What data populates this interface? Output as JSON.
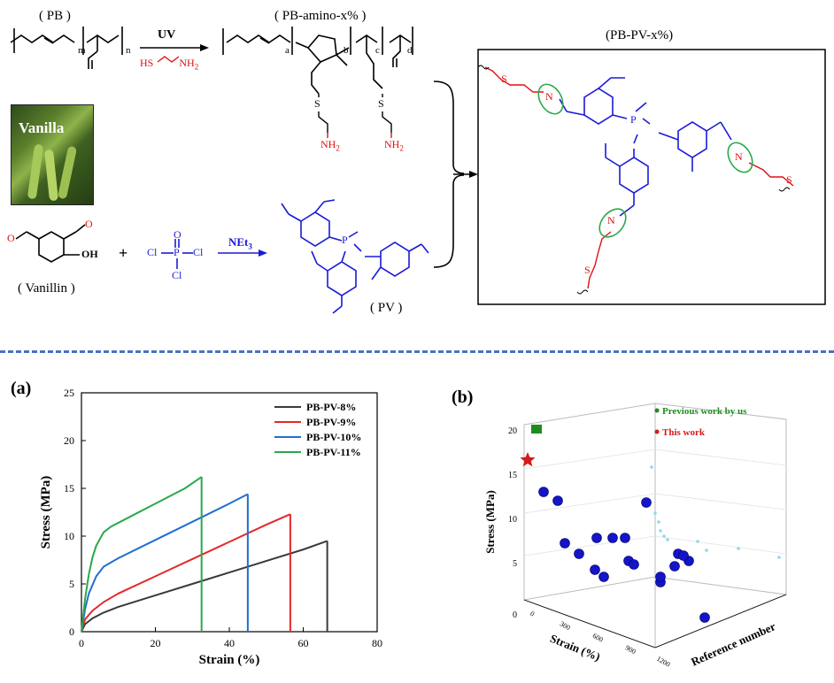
{
  "scheme": {
    "pb_label": "( PB )",
    "pb_amino_label": "( PB-amino-x% )",
    "pb_pv_label": "(PB-PV-x%)",
    "uv_label": "UV",
    "thiol_reagent": "HS",
    "thiol_amine": "NH",
    "thiol_sub": "2",
    "vanilla_text": "Vanilla",
    "vanillin_label": "( Vanillin )",
    "plus": "+",
    "net3_label": "NEt",
    "net3_sub": "3",
    "pv_label": "( PV )",
    "subscripts": {
      "m": "m",
      "n": "n",
      "a": "a",
      "b": "b",
      "c": "c",
      "d": "d"
    },
    "atoms": {
      "OH": "OH",
      "O": "O",
      "P": "P",
      "Cl": "Cl",
      "N": "N",
      "S": "S",
      "NH2": "NH",
      "H2": "2"
    },
    "colors": {
      "blue": "#1a1ad9",
      "red": "#e01010",
      "green": "#2aa84a",
      "black": "#000000"
    }
  },
  "panel_a": {
    "label": "(a)",
    "chart_data": {
      "type": "line",
      "xlabel": "Strain (%)",
      "ylabel": "Stress (MPa)",
      "xlim": [
        0,
        80
      ],
      "ylim": [
        0,
        25
      ],
      "xticks": [
        0,
        20,
        40,
        60,
        80
      ],
      "yticks": [
        0,
        5,
        10,
        15,
        20,
        25
      ],
      "legend_position": "top-right",
      "series": [
        {
          "name": "PB-PV-8%",
          "color": "#3a3a3a",
          "break_strain": 66.5,
          "break_stress": 9.5,
          "points": [
            [
              0,
              0
            ],
            [
              1,
              0.8
            ],
            [
              3,
              1.4
            ],
            [
              6,
              2.0
            ],
            [
              10,
              2.6
            ],
            [
              20,
              3.8
            ],
            [
              30,
              5.0
            ],
            [
              40,
              6.2
            ],
            [
              50,
              7.4
            ],
            [
              60,
              8.6
            ],
            [
              66.5,
              9.5
            ]
          ]
        },
        {
          "name": "PB-PV-9%",
          "color": "#e52828",
          "break_strain": 56.5,
          "break_stress": 12.3,
          "points": [
            [
              0,
              0
            ],
            [
              1,
              1.3
            ],
            [
              3,
              2.2
            ],
            [
              6,
              3.1
            ],
            [
              10,
              4.0
            ],
            [
              20,
              5.8
            ],
            [
              30,
              7.6
            ],
            [
              40,
              9.4
            ],
            [
              50,
              11.2
            ],
            [
              56.5,
              12.3
            ]
          ]
        },
        {
          "name": "PB-PV-10%",
          "color": "#1f6fd1",
          "break_strain": 45,
          "break_stress": 14.4,
          "points": [
            [
              0,
              0
            ],
            [
              1,
              2.4
            ],
            [
              2,
              4.0
            ],
            [
              4,
              5.8
            ],
            [
              6,
              6.8
            ],
            [
              10,
              7.7
            ],
            [
              20,
              9.6
            ],
            [
              30,
              11.5
            ],
            [
              40,
              13.4
            ],
            [
              45,
              14.4
            ]
          ]
        },
        {
          "name": "PB-PV-11%",
          "color": "#2aa84a",
          "break_strain": 32.5,
          "break_stress": 16.2,
          "points": [
            [
              0,
              0
            ],
            [
              1,
              3.5
            ],
            [
              2,
              6.0
            ],
            [
              3,
              7.8
            ],
            [
              4,
              9.0
            ],
            [
              6,
              10.4
            ],
            [
              8,
              11.0
            ],
            [
              12,
              11.8
            ],
            [
              20,
              13.4
            ],
            [
              28,
              15.0
            ],
            [
              32.5,
              16.2
            ]
          ]
        }
      ]
    }
  },
  "panel_b": {
    "label": "(b)",
    "chart_data": {
      "type": "scatter",
      "ylabel": "Stress (MPa)",
      "xlabel": "Strain (%)",
      "zlabel": "Reference number",
      "yticks": [
        0,
        5,
        10,
        15,
        20
      ],
      "xticks": [
        0,
        300,
        600,
        900,
        1200
      ],
      "legend": [
        {
          "name": "Previous work by us",
          "color": "#1e8c1e"
        },
        {
          "name": "This work",
          "color": "#d41a1a"
        }
      ],
      "points_screen_note": "approximate projected positions",
      "blue_points": 19
    }
  }
}
